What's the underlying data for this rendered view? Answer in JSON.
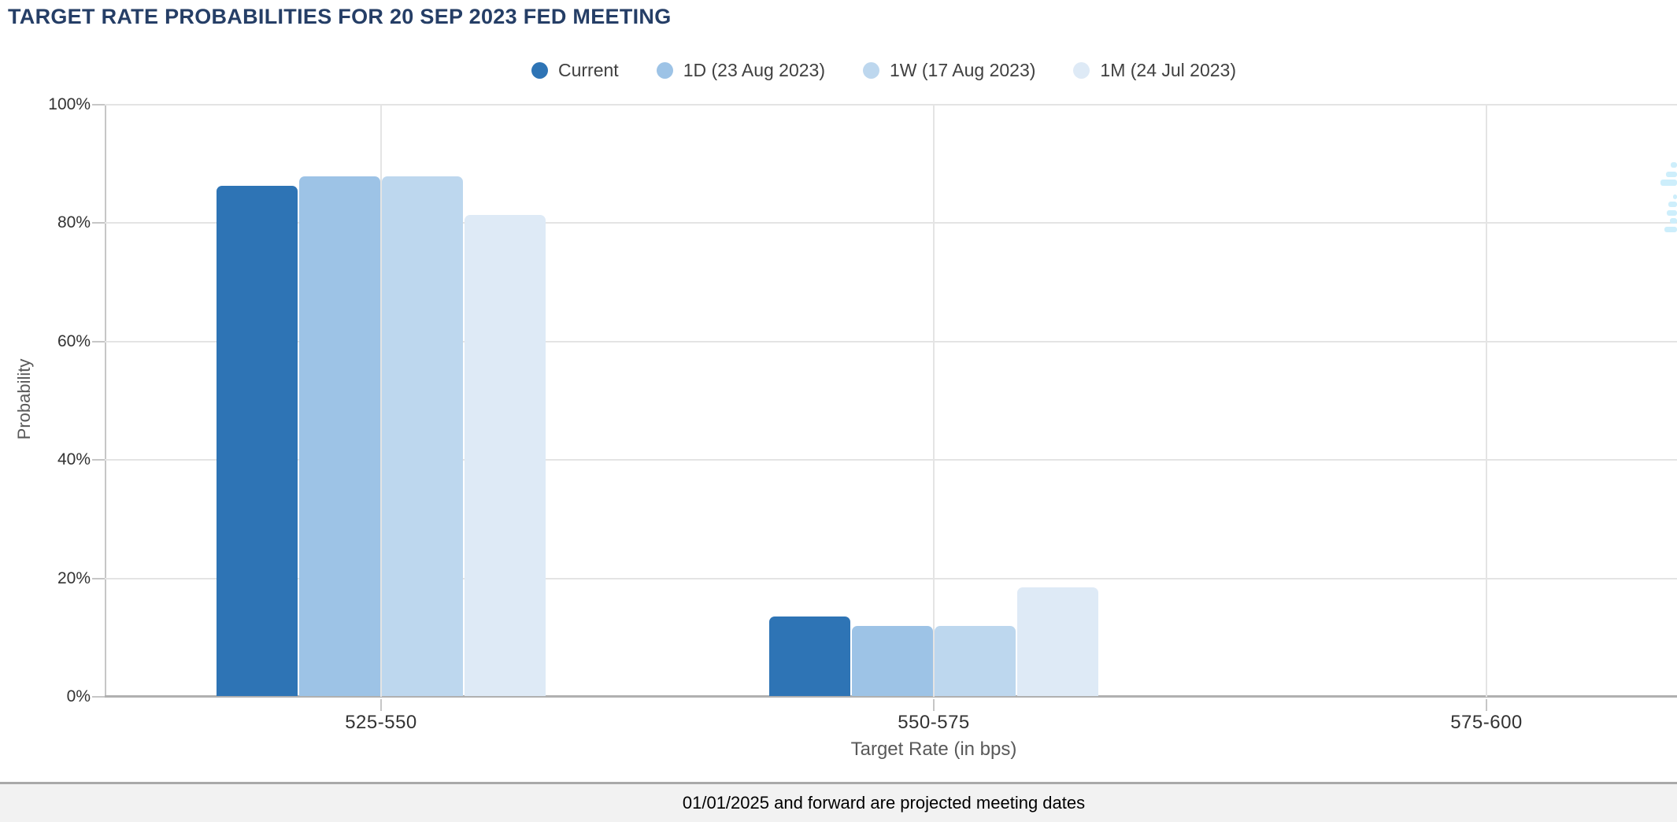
{
  "title": "TARGET RATE PROBABILITIES FOR 20 SEP 2023 FED MEETING",
  "footer_note": "01/01/2025 and forward are projected meeting dates",
  "colors": {
    "title_navy": "#253E66",
    "series_current": "#2E74B5",
    "series_1d": "#9DC3E6",
    "series_1w": "#BDD7EE",
    "series_1m": "#DEEAF6",
    "gridline": "#e4e4e4",
    "axis_line": "#b0b0b0",
    "footer_bg": "#f2f2f2",
    "watermark_cyan": "#cdeefb"
  },
  "chart_data": {
    "type": "bar",
    "title": "TARGET RATE PROBABILITIES FOR 20 SEP 2023 FED MEETING",
    "categories": [
      "525-550",
      "550-575",
      "575-600"
    ],
    "series": [
      {
        "name": "Current",
        "color": "#2E74B5",
        "values": [
          86.2,
          13.4,
          0
        ]
      },
      {
        "name": "1D (23 Aug 2023)",
        "color": "#9DC3E6",
        "values": [
          87.8,
          11.9,
          0
        ]
      },
      {
        "name": "1W (17 Aug 2023)",
        "color": "#BDD7EE",
        "values": [
          87.8,
          11.9,
          0
        ]
      },
      {
        "name": "1M (24 Jul 2023)",
        "color": "#DEEAF6",
        "values": [
          81.3,
          18.4,
          0
        ]
      }
    ],
    "xlabel": "Target Rate (in bps)",
    "ylabel": "Probability",
    "ylim": [
      0,
      100
    ],
    "yticks": [
      "0%",
      "20%",
      "40%",
      "60%",
      "80%",
      "100%"
    ],
    "grid": true,
    "legend_position": "top"
  }
}
